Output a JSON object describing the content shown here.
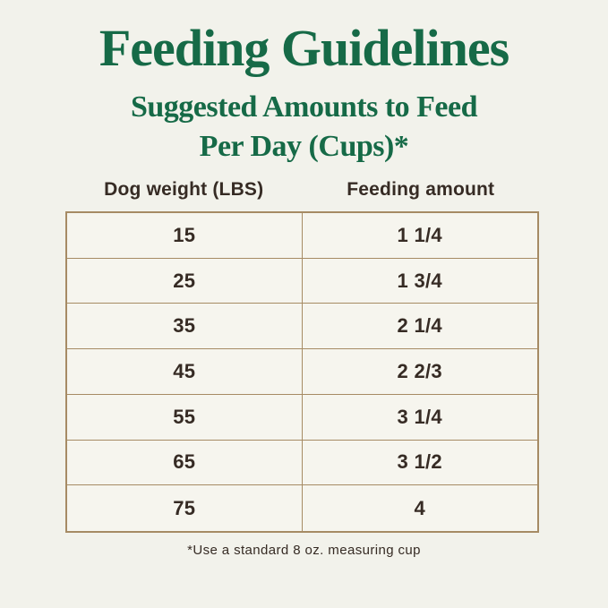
{
  "header": {
    "title": "Feeding Guidelines",
    "subtitle_line1": "Suggested Amounts to Feed",
    "subtitle_line2": "Per Day (Cups)*"
  },
  "table": {
    "columns": [
      "Dog weight (LBS)",
      "Feeding amount"
    ],
    "rows": [
      {
        "weight": "15",
        "amount": "1 1/4"
      },
      {
        "weight": "25",
        "amount": "1 3/4"
      },
      {
        "weight": "35",
        "amount": "2 1/4"
      },
      {
        "weight": "45",
        "amount": "2 2/3"
      },
      {
        "weight": "55",
        "amount": "3 1/4"
      },
      {
        "weight": "65",
        "amount": "3 1/2"
      },
      {
        "weight": "75",
        "amount": "4"
      }
    ]
  },
  "footnote": "*Use a standard 8 oz. measuring cup",
  "colors": {
    "background": "#F2F2EB",
    "cell_background": "#F6F5EE",
    "heading_green": "#166A47",
    "table_border": "#A68B64",
    "text_dark": "#362B24"
  },
  "chart_data": {
    "type": "table",
    "title": "Feeding Guidelines",
    "subtitle": "Suggested Amounts to Feed Per Day (Cups)*",
    "columns": [
      "Dog weight (LBS)",
      "Feeding amount"
    ],
    "rows": [
      [
        "15",
        "1 1/4"
      ],
      [
        "25",
        "1 3/4"
      ],
      [
        "35",
        "2 1/4"
      ],
      [
        "45",
        "2 2/3"
      ],
      [
        "55",
        "3 1/4"
      ],
      [
        "65",
        "3 1/2"
      ],
      [
        "75",
        "4"
      ]
    ],
    "footnote": "*Use a standard 8 oz. measuring cup",
    "layout": {
      "grid": "on",
      "header_row_outside_border": true,
      "columns_equal_width": true
    }
  }
}
